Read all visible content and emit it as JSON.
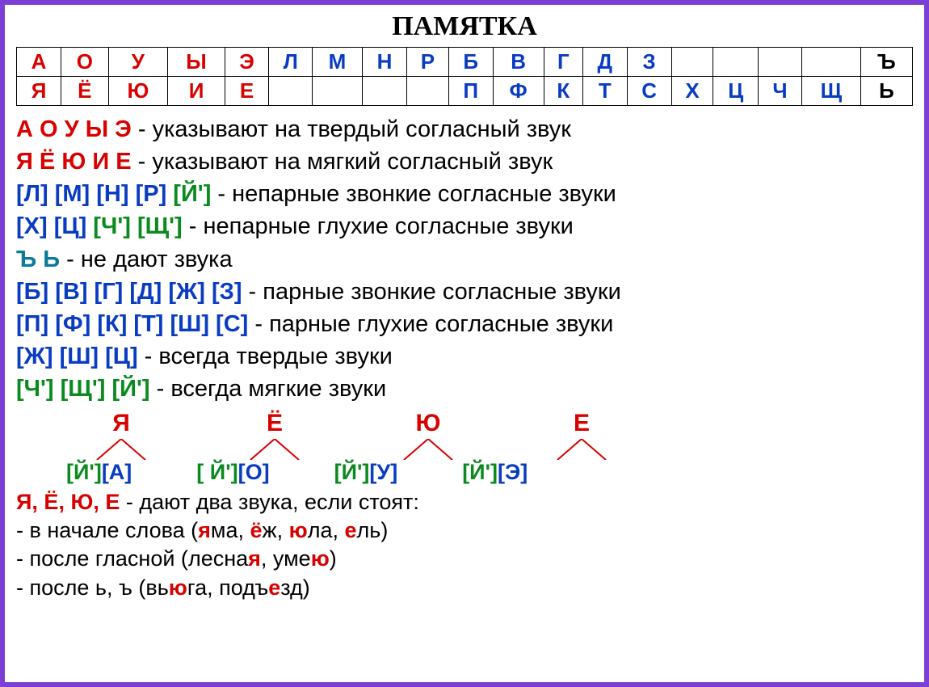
{
  "title": "ПАМЯТКА",
  "colors": {
    "red": "#d90000",
    "blue": "#0a3cc2",
    "green": "#0a8a1f",
    "teal": "#0a7a99",
    "black": "#000000",
    "border": "#7b3fd6"
  },
  "table": {
    "row1": [
      {
        "t": "А",
        "c": "red"
      },
      {
        "t": "О",
        "c": "red"
      },
      {
        "t": "У",
        "c": "red"
      },
      {
        "t": "Ы",
        "c": "red"
      },
      {
        "t": "Э",
        "c": "red"
      },
      {
        "t": "Л",
        "c": "blue"
      },
      {
        "t": "М",
        "c": "blue"
      },
      {
        "t": "Н",
        "c": "blue"
      },
      {
        "t": "Р",
        "c": "blue"
      },
      {
        "t": "Б",
        "c": "blue"
      },
      {
        "t": "В",
        "c": "blue"
      },
      {
        "t": "Г",
        "c": "blue"
      },
      {
        "t": "Д",
        "c": "blue"
      },
      {
        "t": "З",
        "c": "blue"
      },
      {
        "t": "",
        "c": "black"
      },
      {
        "t": "",
        "c": "black"
      },
      {
        "t": "",
        "c": "black"
      },
      {
        "t": "",
        "c": "black"
      },
      {
        "t": "Ъ",
        "c": "black"
      }
    ],
    "row2": [
      {
        "t": "Я",
        "c": "red"
      },
      {
        "t": "Ё",
        "c": "red"
      },
      {
        "t": "Ю",
        "c": "red"
      },
      {
        "t": "И",
        "c": "red"
      },
      {
        "t": "Е",
        "c": "red"
      },
      {
        "t": "",
        "c": "black"
      },
      {
        "t": "",
        "c": "black"
      },
      {
        "t": "",
        "c": "black"
      },
      {
        "t": "",
        "c": "black"
      },
      {
        "t": "П",
        "c": "blue"
      },
      {
        "t": "Ф",
        "c": "blue"
      },
      {
        "t": "К",
        "c": "blue"
      },
      {
        "t": "Т",
        "c": "blue"
      },
      {
        "t": "С",
        "c": "blue"
      },
      {
        "t": "Х",
        "c": "blue"
      },
      {
        "t": "Ц",
        "c": "blue"
      },
      {
        "t": "Ч",
        "c": "blue"
      },
      {
        "t": "Щ",
        "c": "blue"
      },
      {
        "t": "Ь",
        "c": "black"
      }
    ]
  },
  "rules": [
    {
      "lead": [
        {
          "t": "А О У Ы Э",
          "c": "red"
        }
      ],
      "rest": " - указывают на твердый согласный звук"
    },
    {
      "lead": [
        {
          "t": "Я Ё Ю И Е",
          "c": "red"
        }
      ],
      "rest": " - указывают на мягкий согласный звук"
    },
    {
      "lead": [
        {
          "t": "[Л]",
          "c": "blue"
        },
        {
          "t": " [М]",
          "c": "blue"
        },
        {
          "t": " [Н]",
          "c": "blue"
        },
        {
          "t": " [Р]",
          "c": "blue"
        },
        {
          "t": " [Й']",
          "c": "green"
        }
      ],
      "rest": " - непарные звонкие согласные звуки"
    },
    {
      "lead": [
        {
          "t": "[Х]",
          "c": "blue"
        },
        {
          "t": " [Ц]",
          "c": "blue"
        },
        {
          "t": " [Ч']",
          "c": "green"
        },
        {
          "t": " [Щ']",
          "c": "green"
        }
      ],
      "rest": " - непарные глухие согласные звуки"
    },
    {
      "lead": [
        {
          "t": "Ъ Ь",
          "c": "teal"
        }
      ],
      "rest": " - не дают звука"
    },
    {
      "lead": [
        {
          "t": "[Б]",
          "c": "blue"
        },
        {
          "t": " [В]",
          "c": "blue"
        },
        {
          "t": " [Г]",
          "c": "blue"
        },
        {
          "t": " [Д]",
          "c": "blue"
        },
        {
          "t": " [Ж]",
          "c": "blue"
        },
        {
          "t": " [З]",
          "c": "blue"
        }
      ],
      "rest": " - парные звонкие согласные звуки"
    },
    {
      "lead": [
        {
          "t": "[П]",
          "c": "blue"
        },
        {
          "t": " [Ф]",
          "c": "blue"
        },
        {
          "t": " [К]",
          "c": "blue"
        },
        {
          "t": " [Т]",
          "c": "blue"
        },
        {
          "t": " [Ш]",
          "c": "blue"
        },
        {
          "t": " [С]",
          "c": "blue"
        }
      ],
      "rest": " - парные глухие согласные звуки"
    },
    {
      "lead": [
        {
          "t": "[Ж]",
          "c": "blue"
        },
        {
          "t": " [Ш]",
          "c": "blue"
        },
        {
          "t": " [Ц]",
          "c": "blue"
        }
      ],
      "rest": " - всегда твердые звуки"
    },
    {
      "lead": [
        {
          "t": "[Ч']",
          "c": "green"
        },
        {
          "t": " [Щ']",
          "c": "green"
        },
        {
          "t": " [Й']",
          "c": "green"
        }
      ],
      "rest": " - всегда мягкие звуки"
    }
  ],
  "yotated": {
    "letters": [
      {
        "t": "Я",
        "c": "red"
      },
      {
        "t": "Ё",
        "c": "red"
      },
      {
        "t": "Ю",
        "c": "red"
      },
      {
        "t": "Е",
        "c": "red"
      }
    ],
    "sounds": [
      [
        {
          "t": "[Й']",
          "c": "green"
        },
        {
          "t": "[А]",
          "c": "blue"
        }
      ],
      [
        {
          "t": "[ Й']",
          "c": "green"
        },
        {
          "t": "[О]",
          "c": "blue"
        }
      ],
      [
        {
          "t": "[Й']",
          "c": "green"
        },
        {
          "t": "[У]",
          "c": "blue"
        }
      ],
      [
        {
          "t": "[Й']",
          "c": "green"
        },
        {
          "t": "[Э]",
          "c": "blue"
        }
      ]
    ],
    "line_color": "#d90000"
  },
  "examples": {
    "header_lead": "Я, Ё, Ю, Е",
    "header_rest": " - дают два звука, если стоят:",
    "lines": [
      {
        "pre": "- в начале слова (",
        "words": [
          {
            "p": "",
            "hl": "я",
            "s": "ма, "
          },
          {
            "p": "",
            "hl": "ё",
            "s": "ж, "
          },
          {
            "p": "",
            "hl": "ю",
            "s": "ла, "
          },
          {
            "p": "",
            "hl": "е",
            "s": "ль)"
          }
        ]
      },
      {
        "pre": "- после гласной (",
        "words": [
          {
            "p": "лесна",
            "hl": "я",
            "s": ", "
          },
          {
            "p": "уме",
            "hl": "ю",
            "s": ")"
          }
        ]
      },
      {
        "pre": " - после ь, ъ (",
        "words": [
          {
            "p": "вь",
            "hl": "ю",
            "s": "га, "
          },
          {
            "p": "подъ",
            "hl": "е",
            "s": "зд)"
          }
        ]
      }
    ]
  }
}
